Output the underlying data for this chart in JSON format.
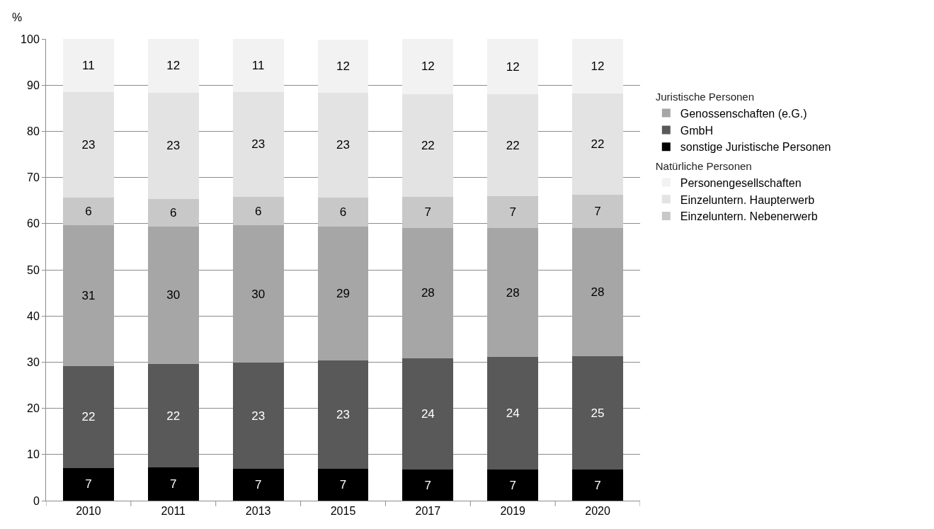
{
  "chart_data": {
    "type": "bar",
    "stacked": true,
    "ylabel": "%",
    "categories": [
      "2010",
      "2011",
      "2013",
      "2015",
      "2017",
      "2019",
      "2020"
    ],
    "ylim": [
      0,
      100
    ],
    "yticks": [
      0,
      10,
      20,
      30,
      40,
      50,
      60,
      70,
      80,
      90,
      100
    ],
    "grid": "y",
    "legend": "right",
    "annotations": [
      "Natürliche Personen",
      "Juristische Personen"
    ],
    "series": [
      {
        "name": "sonstige Juristische Personen",
        "color": "#000000",
        "values": [
          7.1,
          7.2,
          6.9,
          6.9,
          6.7,
          6.7,
          6.7
        ],
        "value_labels": [
          "7",
          "7",
          "7",
          "7",
          "7",
          "7",
          "7"
        ]
      },
      {
        "name": "GmbH",
        "color": "#595959",
        "values": [
          22.1,
          22.4,
          23.0,
          23.5,
          24.1,
          24.4,
          24.6
        ],
        "value_labels": [
          "22",
          "22",
          "23",
          "23",
          "24",
          "24",
          "25"
        ]
      },
      {
        "name": "Genossenschaften (e.G.)",
        "color": "#a6a6a6",
        "values": [
          30.5,
          29.8,
          29.7,
          28.9,
          28.3,
          27.9,
          27.7
        ],
        "value_labels": [
          "31",
          "30",
          "30",
          "29",
          "28",
          "28",
          "28"
        ]
      },
      {
        "name": "Einzeluntern. Nebenerwerb",
        "color": "#c8c8c8",
        "values": [
          5.9,
          6.0,
          6.2,
          6.4,
          6.7,
          6.9,
          7.2
        ],
        "value_labels": [
          "6",
          "6",
          "6",
          "6",
          "7",
          "7",
          "7"
        ]
      },
      {
        "name": "Einzeluntern. Haupterwerb",
        "color": "#e3e3e3",
        "values": [
          22.9,
          23.0,
          22.7,
          22.6,
          22.3,
          22.1,
          22.0
        ],
        "value_labels": [
          "23",
          "23",
          "23",
          "23",
          "22",
          "22",
          "22"
        ]
      },
      {
        "name": "Personengesellschaften",
        "color": "#f2f2f2",
        "values": [
          11.5,
          11.6,
          11.5,
          11.6,
          11.9,
          12.0,
          11.8
        ],
        "value_labels": [
          "11",
          "12",
          "11",
          "12",
          "12",
          "12",
          "12"
        ]
      }
    ]
  }
}
